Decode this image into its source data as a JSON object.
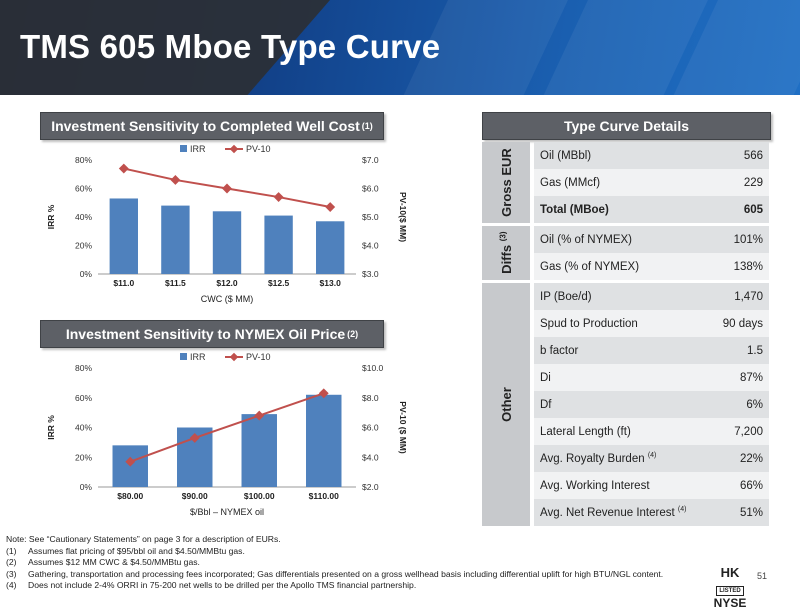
{
  "title": "TMS 605 Mboe Type Curve",
  "charts_section": {
    "cwc_title": "Investment Sensitivity to Completed Well Cost",
    "cwc_note": "(1)",
    "oil_title": "Investment Sensitivity to NYMEX Oil Price",
    "oil_note": "(2)"
  },
  "chart_data": [
    {
      "type": "bar",
      "xlabel": "CWC ($ MM)",
      "ylabel": "IRR %",
      "y2label": "PV-10($ MM)",
      "categories": [
        "$11.0",
        "$11.5",
        "$12.0",
        "$12.5",
        "$13.0"
      ],
      "series": [
        {
          "name": "IRR",
          "type": "bar",
          "axis": "left",
          "values": [
            53,
            48,
            44,
            41,
            37
          ],
          "color": "#4f81bd"
        },
        {
          "name": "PV-10",
          "type": "line",
          "axis": "right",
          "values": [
            6.7,
            6.3,
            6.0,
            5.7,
            5.35
          ],
          "color": "#c0504d"
        }
      ],
      "ylim": [
        0,
        80
      ],
      "yticks": [
        "0%",
        "20%",
        "40%",
        "60%",
        "80%"
      ],
      "y2lim": [
        3.0,
        7.0
      ],
      "y2ticks": [
        "$3.0",
        "$4.0",
        "$5.0",
        "$6.0",
        "$7.0"
      ],
      "legend": "top"
    },
    {
      "type": "bar",
      "xlabel": "$/Bbl – NYMEX oil",
      "ylabel": "IRR %",
      "y2label": "PV-10 ($ MM)",
      "categories": [
        "$80.00",
        "$90.00",
        "$100.00",
        "$110.00"
      ],
      "series": [
        {
          "name": "IRR",
          "type": "bar",
          "axis": "left",
          "values": [
            28,
            40,
            49,
            62
          ],
          "color": "#4f81bd"
        },
        {
          "name": "PV-10",
          "type": "line",
          "axis": "right",
          "values": [
            3.7,
            5.3,
            6.8,
            8.3
          ],
          "color": "#c0504d"
        }
      ],
      "ylim": [
        0,
        80
      ],
      "yticks": [
        "0%",
        "20%",
        "40%",
        "60%",
        "80%"
      ],
      "y2lim": [
        2.0,
        10.0
      ],
      "y2ticks": [
        "$2.0",
        "$4.0",
        "$6.0",
        "$8.0",
        "$10.0"
      ],
      "legend": "top"
    }
  ],
  "type_curve": {
    "title": "Type Curve Details",
    "groups": [
      {
        "label": "Gross EUR",
        "note": "",
        "rows": [
          {
            "label": "Oil (MBbl)",
            "note": "",
            "value": "566",
            "bold": false
          },
          {
            "label": "Gas (MMcf)",
            "note": "",
            "value": "229",
            "bold": false
          },
          {
            "label": "Total (MBoe)",
            "note": "",
            "value": "605",
            "bold": true
          }
        ]
      },
      {
        "label": "Diffs",
        "note": "(3)",
        "rows": [
          {
            "label": "Oil (% of NYMEX)",
            "note": "",
            "value": "101%",
            "bold": false
          },
          {
            "label": "Gas (% of NYMEX)",
            "note": "",
            "value": "138%",
            "bold": false
          }
        ]
      },
      {
        "label": "Other",
        "note": "",
        "rows": [
          {
            "label": "IP (Boe/d)",
            "note": "",
            "value": "1,470",
            "bold": false
          },
          {
            "label": "Spud to Production",
            "note": "",
            "value": "90 days",
            "bold": false
          },
          {
            "label": "b factor",
            "note": "",
            "value": "1.5",
            "bold": false
          },
          {
            "label": "Di",
            "note": "",
            "value": "87%",
            "bold": false
          },
          {
            "label": "Df",
            "note": "",
            "value": "6%",
            "bold": false
          },
          {
            "label": "Lateral Length (ft)",
            "note": "",
            "value": "7,200",
            "bold": false
          },
          {
            "label": "Avg. Royalty Burden",
            "note": "(4)",
            "value": "22%",
            "bold": false
          },
          {
            "label": "Avg. Working Interest",
            "note": "",
            "value": "66%",
            "bold": false
          },
          {
            "label": "Avg. Net Revenue Interest",
            "note": "(4)",
            "value": "51%",
            "bold": false
          }
        ]
      }
    ]
  },
  "footnotes": [
    {
      "num": "",
      "text": "Note: See “Cautionary Statements” on page 3 for a description of EURs."
    },
    {
      "num": "(1)",
      "text": "Assumes flat pricing of $95/bbl oil and $4.50/MMBtu gas."
    },
    {
      "num": "(2)",
      "text": "Assumes $12 MM CWC & $4.50/MMBtu gas."
    },
    {
      "num": "(3)",
      "text": "Gathering, transportation and processing fees incorporated; Gas differentials presented on a gross wellhead basis including differential uplift for high BTU/NGL content."
    },
    {
      "num": "(4)",
      "text": "Does not include 2-4% ORRI in 75-200 net wells to be drilled per the Apollo TMS financial partnership."
    }
  ],
  "logo": {
    "top": "HK",
    "middle": "LISTED",
    "bottom": "NYSE"
  },
  "page_number": "51"
}
